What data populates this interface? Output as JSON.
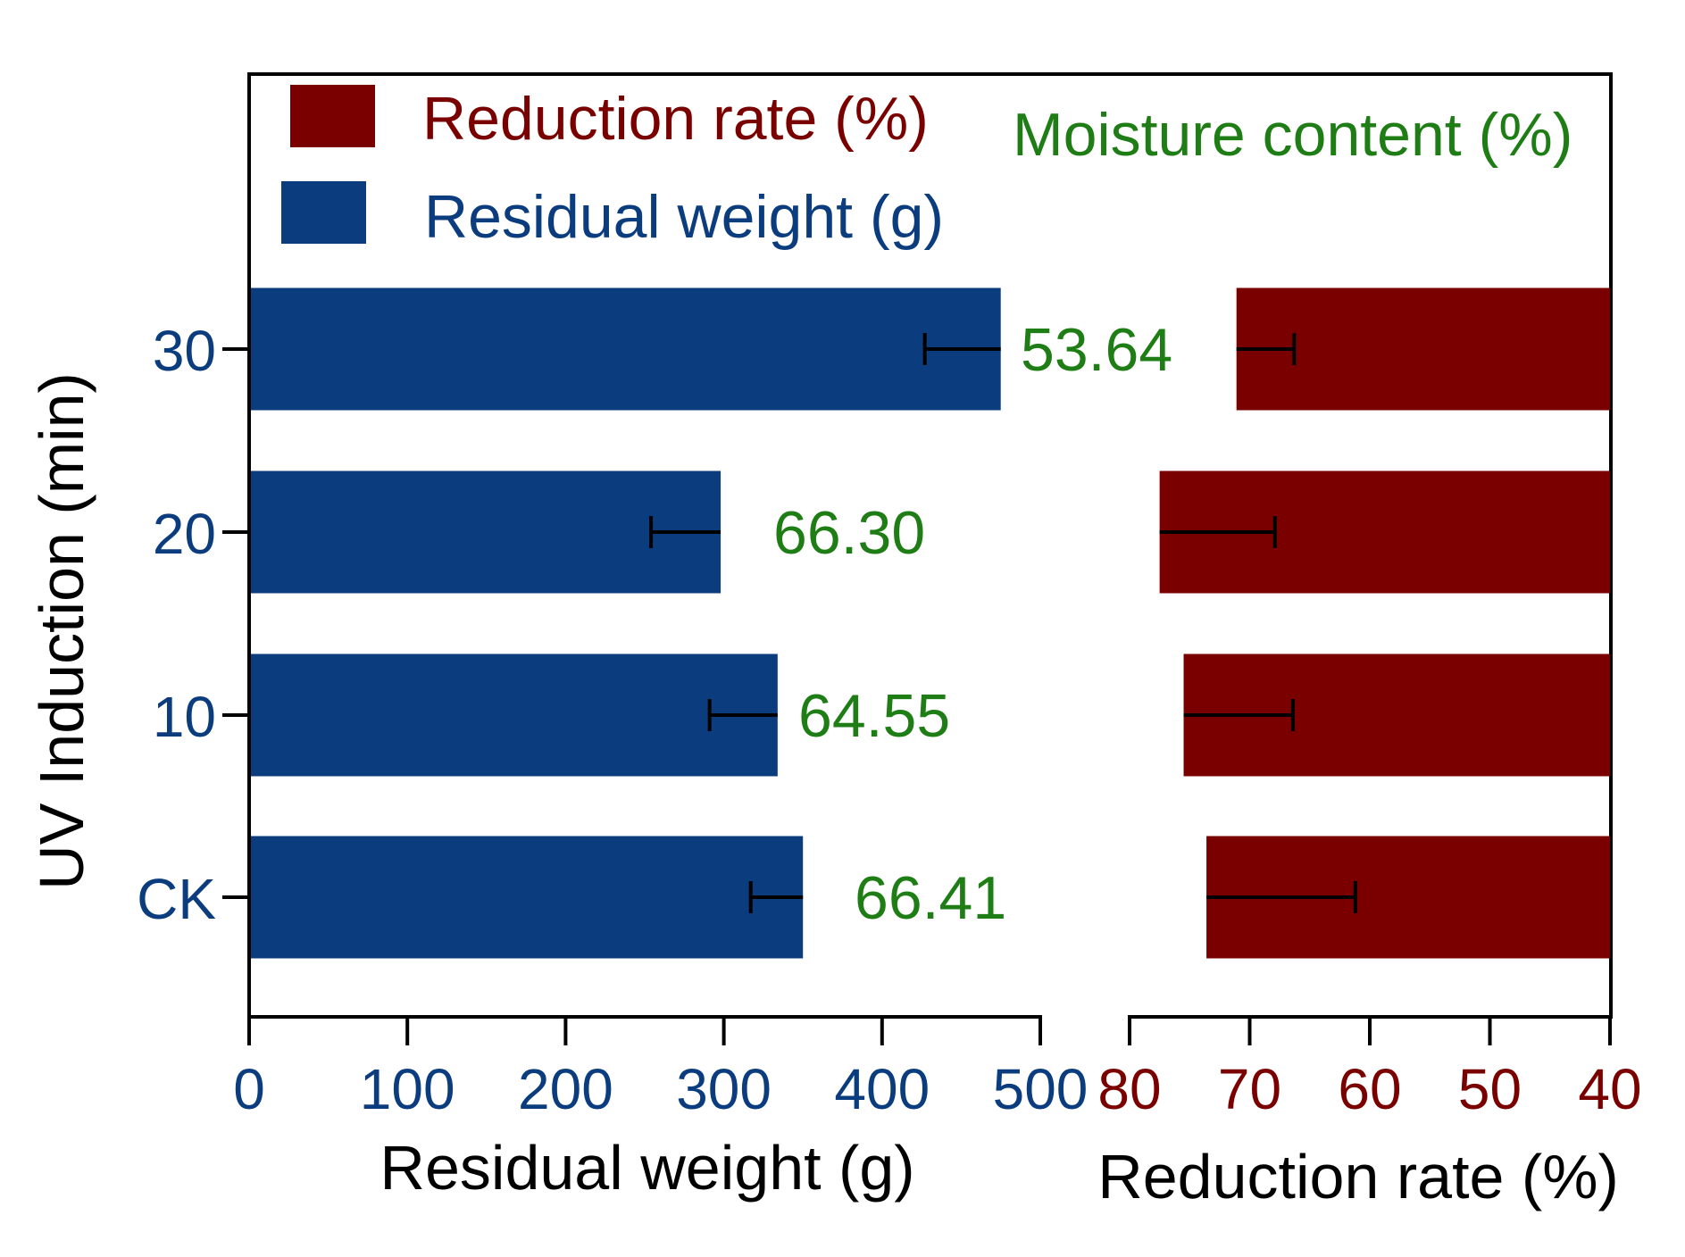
{
  "colors": {
    "residual": "#0b3d7e",
    "reduction": "#7a0000",
    "moisture": "#1e7d14",
    "axis": "#000000"
  },
  "chart_data": {
    "type": "bar",
    "orientation": "horizontal",
    "ylabel": "UV Induction  (min)",
    "categories": [
      "30",
      "20",
      "10",
      "CK"
    ],
    "legend": [
      {
        "label": "Reduction rate (%)",
        "color": "#7a0000"
      },
      {
        "label": "Residual weight (g)",
        "color": "#0b3d7e"
      }
    ],
    "moisture_header": "Moisture content (%)",
    "left_panel": {
      "series": "Residual weight (g)",
      "xlabel": "Residual weight (g)",
      "xlim": [
        0,
        500
      ],
      "ticks": [
        "0",
        "100",
        "200",
        "300",
        "400",
        "500"
      ],
      "values": [
        475,
        298,
        334,
        350
      ],
      "errors": [
        48,
        44,
        43,
        33
      ]
    },
    "right_panel": {
      "series": "Reduction rate (%)",
      "xlabel": "Reduction rate (%)",
      "xlim": [
        80,
        40
      ],
      "ticks": [
        "80",
        "70",
        "60",
        "50",
        "40"
      ],
      "values": [
        71.1,
        77.5,
        75.5,
        73.6
      ],
      "errors": [
        4.8,
        9.6,
        9.1,
        12.4
      ]
    },
    "moisture_content": [
      "53.64",
      "66.30",
      "64.55",
      "66.41"
    ]
  }
}
